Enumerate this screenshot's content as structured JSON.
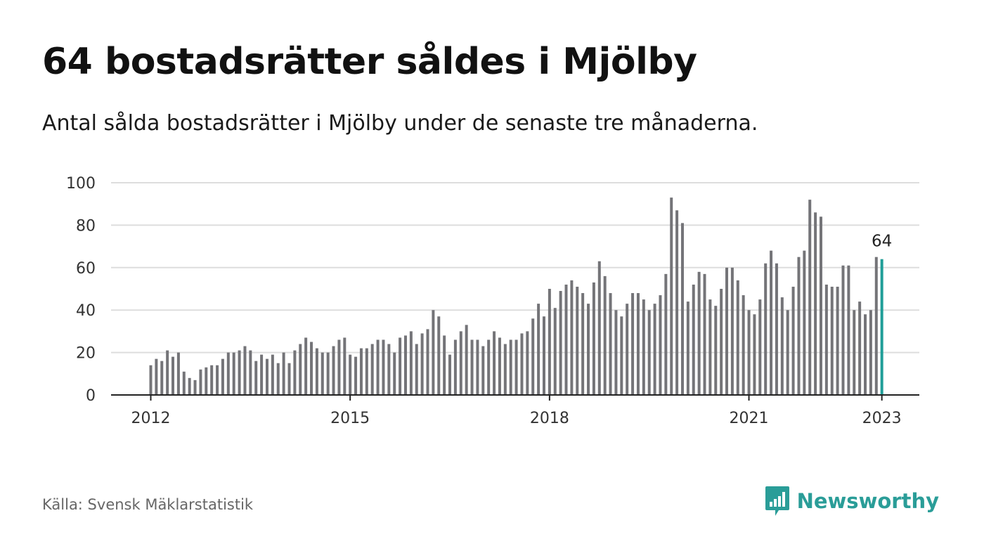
{
  "header": {
    "title": "64 bostadsrätter såldes i Mjölby",
    "subtitle": "Antal sålda bostadsrätter i Mjölby under de senaste tre månaderna."
  },
  "footer": {
    "source": "Källa: Svensk Mäklarstatistik",
    "brand": "Newsworthy"
  },
  "colors": {
    "bar": "#747478",
    "highlight": "#1f9e98",
    "grid": "#dddddd",
    "axis": "#222222",
    "brand": "#2a9d98"
  },
  "icons": {
    "brand_logo": "newsworthy-bar-chart-icon"
  },
  "chart_data": {
    "type": "bar",
    "title": "64 bostadsrätter såldes i Mjölby",
    "subtitle": "Antal sålda bostadsrätter i Mjölby under de senaste tre månaderna.",
    "xlabel": "",
    "ylabel": "",
    "x_tick_labels": [
      "2012",
      "2015",
      "2018",
      "2021",
      "2023"
    ],
    "x_tick_positions": [
      0,
      36,
      72,
      108,
      132
    ],
    "y_ticks": [
      0,
      20,
      40,
      60,
      80,
      100
    ],
    "ylim": [
      0,
      100
    ],
    "grid": true,
    "legend": "none",
    "highlight_label": "64",
    "highlight_last": true,
    "values": [
      14,
      17,
      16,
      21,
      18,
      20,
      11,
      8,
      7,
      12,
      13,
      14,
      14,
      17,
      20,
      20,
      21,
      23,
      21,
      16,
      19,
      17,
      19,
      15,
      20,
      15,
      21,
      24,
      27,
      25,
      22,
      20,
      20,
      23,
      26,
      27,
      19,
      18,
      22,
      22,
      24,
      26,
      26,
      24,
      20,
      27,
      28,
      30,
      24,
      29,
      31,
      40,
      37,
      28,
      19,
      26,
      30,
      33,
      26,
      26,
      23,
      26,
      30,
      27,
      24,
      26,
      26,
      29,
      30,
      36,
      43,
      37,
      50,
      41,
      49,
      52,
      54,
      51,
      48,
      43,
      53,
      63,
      56,
      48,
      40,
      37,
      43,
      48,
      48,
      45,
      40,
      43,
      47,
      57,
      93,
      87,
      81,
      44,
      52,
      58,
      57,
      45,
      42,
      50,
      60,
      60,
      54,
      47,
      40,
      38,
      45,
      62,
      68,
      62,
      46,
      40,
      51,
      65,
      68,
      92,
      86,
      84,
      52,
      51,
      51,
      61,
      61,
      40,
      44,
      38,
      40,
      65,
      64
    ]
  }
}
